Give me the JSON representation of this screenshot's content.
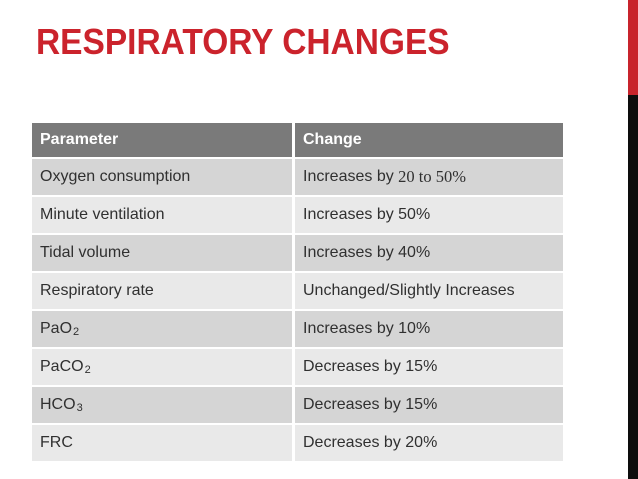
{
  "slide": {
    "title": "RESPIRATORY CHANGES"
  },
  "table": {
    "headers": [
      "Parameter",
      "Change"
    ],
    "rows": [
      {
        "parameter": "Oxygen consumption",
        "change": "Increases by ",
        "change_serif": "20 to 50%"
      },
      {
        "parameter": "Minute ventilation",
        "change": "Increases by 50%"
      },
      {
        "parameter": "Tidal volume",
        "change": "Increases by 40%"
      },
      {
        "parameter": "Respiratory rate",
        "change": "Unchanged/Slightly Increases"
      },
      {
        "parameter": "PaO",
        "parameter_sub": "2",
        "change": "Increases by 10%"
      },
      {
        "parameter": "PaCO",
        "parameter_sub": "2",
        "change": "Decreases by 15%"
      },
      {
        "parameter": "HCO",
        "parameter_sub": "3",
        "change": "Decreases by 15%"
      },
      {
        "parameter": "FRC",
        "change": "Decreases by 20%"
      }
    ]
  },
  "colors": {
    "title_red": "#cb232c",
    "stripe_red": "#c8242c",
    "stripe_black": "#0d0d0d",
    "header_gray": "#7a7a7a",
    "row_dark": "#d5d5d5",
    "row_light": "#e9e9e9",
    "body_text": "#303030"
  }
}
